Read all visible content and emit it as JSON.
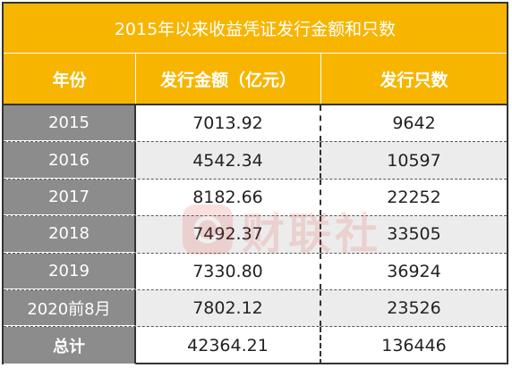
{
  "table": {
    "title": "2015年以来收益凭证发行金额和只数",
    "headers": [
      "年份",
      "发行金额（亿元）",
      "发行只数"
    ],
    "rows": [
      {
        "year": "2015",
        "amount": "7013.92",
        "count": "9642"
      },
      {
        "year": "2016",
        "amount": "4542.34",
        "count": "10597"
      },
      {
        "year": "2017",
        "amount": "8182.66",
        "count": "22252"
      },
      {
        "year": "2018",
        "amount": "7492.37",
        "count": "33505"
      },
      {
        "year": "2019",
        "amount": "7330.80",
        "count": "36924"
      },
      {
        "year": "2020前8月",
        "amount": "7802.12",
        "count": "23526"
      },
      {
        "year": "总计",
        "amount": "42364.21",
        "count": "136446"
      }
    ]
  },
  "watermark": {
    "text": "财联社",
    "icon": "cls-logo-icon"
  },
  "colors": {
    "header": "#f7b500",
    "year_column": "#8c8c8c",
    "alt_row": "#ececec",
    "watermark": "#e0453a"
  }
}
